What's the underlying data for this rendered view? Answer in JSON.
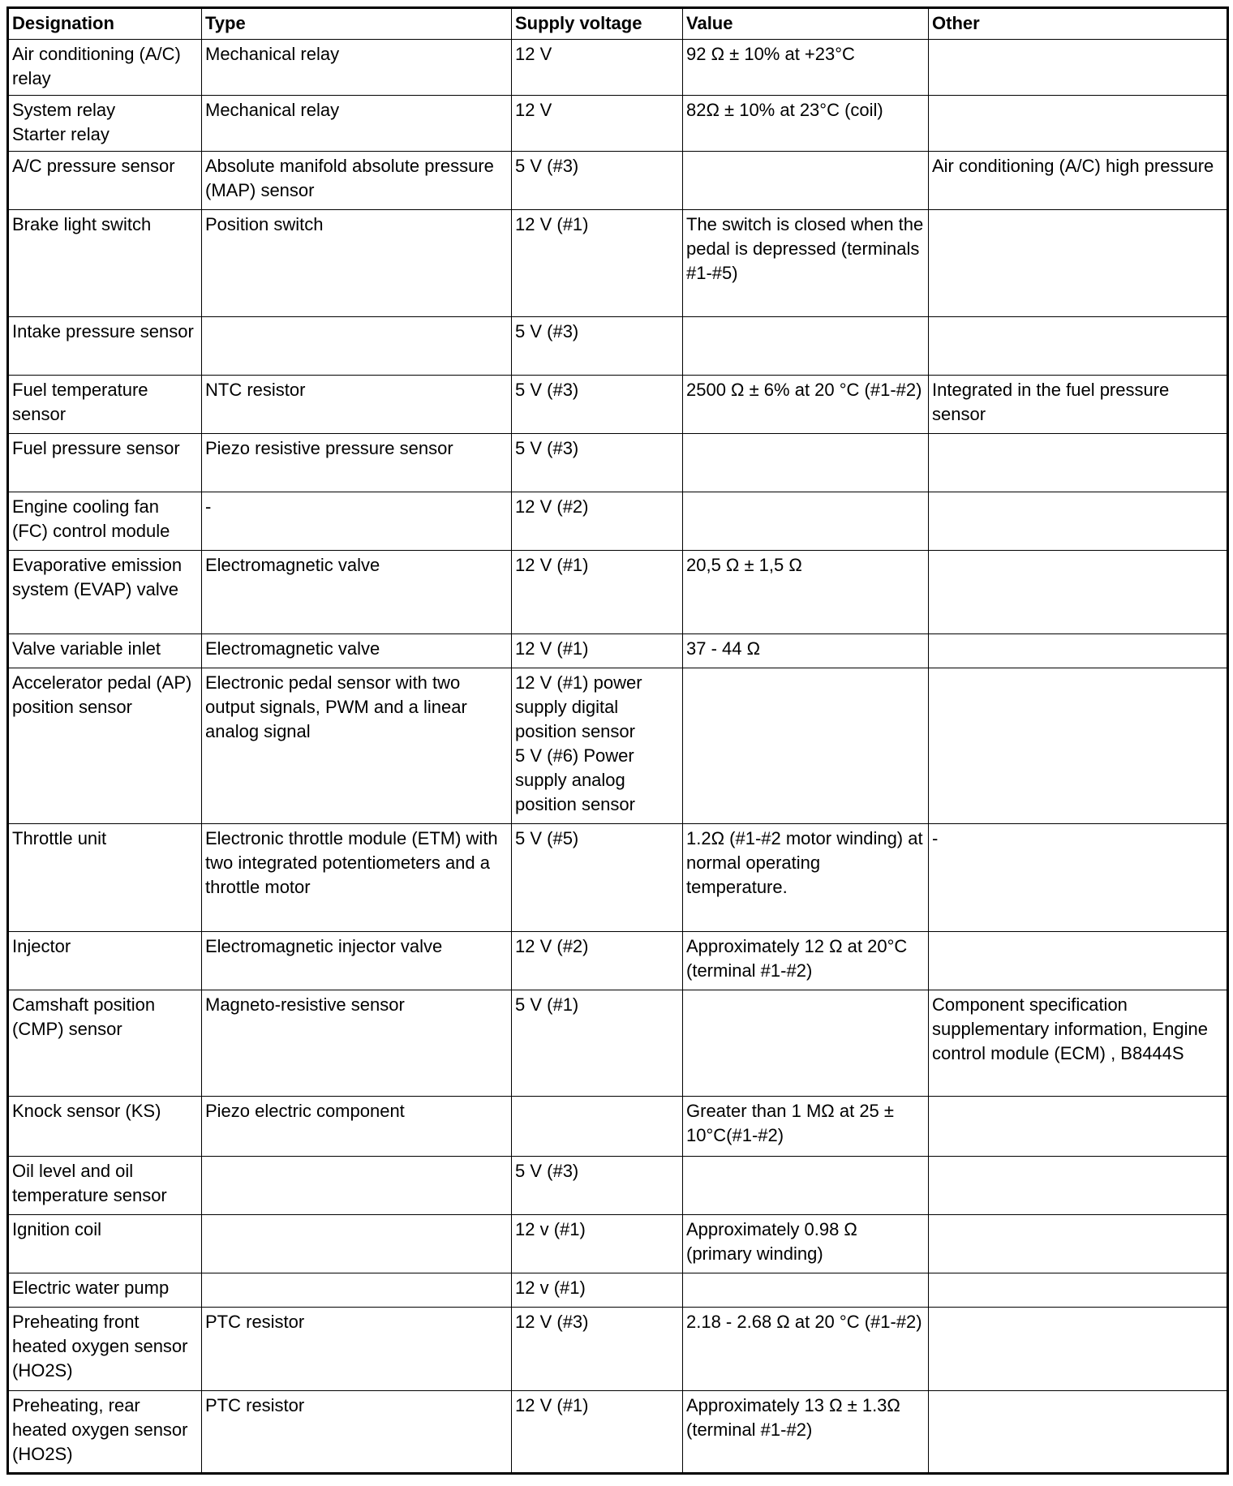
{
  "table": {
    "headers": [
      "Designation",
      "Type",
      "Supply voltage",
      "Value",
      "Other"
    ],
    "rows": [
      [
        "Air conditioning (A/C) relay",
        "Mechanical relay",
        "12 V",
        "92 Ω ± 10% at +23°C",
        ""
      ],
      [
        "System relay\nStarter relay",
        "Mechanical relay",
        "12 V",
        "82Ω ± 10% at 23°C (coil)",
        ""
      ],
      [
        "A/C pressure sensor",
        "Absolute manifold absolute pressure (MAP) sensor",
        "5 V (#3)",
        "",
        "Air conditioning (A/C) high pressure"
      ],
      [
        "Brake light switch",
        "Position switch",
        "12 V (#1)",
        "The switch is closed when the pedal is depressed (terminals #1-#5)",
        ""
      ],
      [
        "Intake pressure sensor",
        "",
        "5 V (#3)",
        "",
        ""
      ],
      [
        "Fuel temperature sensor",
        "NTC resistor",
        "5 V (#3)",
        "2500 Ω ± 6% at 20 °C (#1-#2)",
        "Integrated in the fuel pressure sensor"
      ],
      [
        "Fuel pressure sensor",
        "Piezo resistive pressure sensor",
        "5 V (#3)",
        "",
        ""
      ],
      [
        "Engine cooling fan (FC) control module",
        "-",
        "12 V (#2)",
        "",
        ""
      ],
      [
        "Evaporative emission system (EVAP) valve",
        "Electromagnetic valve",
        "12 V (#1)",
        "20,5 Ω ± 1,5 Ω",
        ""
      ],
      [
        "Valve variable inlet",
        "Electromagnetic valve",
        "12 V (#1)",
        "37 - 44 Ω",
        ""
      ],
      [
        "Accelerator pedal (AP) position sensor",
        "Electronic pedal sensor with two output signals, PWM and a linear analog signal",
        "12 V (#1) power supply digital position sensor\n5 V (#6) Power supply analog position sensor",
        "",
        ""
      ],
      [
        "Throttle unit",
        "Electronic throttle module (ETM) with two integrated potentiometers and a throttle motor",
        "5 V (#5)",
        "1.2Ω (#1-#2 motor winding) at normal operating temperature.",
        "-"
      ],
      [
        "Injector",
        "Electromagnetic injector valve",
        "12 V (#2)",
        "Approximately 12 Ω at 20°C (terminal #1-#2)",
        ""
      ],
      [
        "Camshaft position (CMP) sensor",
        "Magneto-resistive sensor",
        "5 V (#1)",
        "",
        "Component specification supplementary information, Engine control module (ECM) , B8444S"
      ],
      [
        "Knock sensor (KS)",
        "Piezo electric component",
        "",
        "Greater than 1 MΩ at 25 ± 10°C(#1-#2)",
        ""
      ],
      [
        "Oil level and oil temperature sensor",
        "",
        "5 V (#3)",
        "",
        ""
      ],
      [
        "Ignition coil",
        "",
        "12 v (#1)",
        "Approximately 0.98 Ω (primary winding)",
        ""
      ],
      [
        "Electric water pump",
        "",
        "12 v (#1)",
        "",
        ""
      ],
      [
        "Preheating front heated oxygen sensor (HO2S)",
        "PTC resistor",
        "12 V (#3)",
        "2.18 - 2.68 Ω at 20 °C (#1-#2)",
        ""
      ],
      [
        "Preheating, rear heated oxygen sensor (HO2S)",
        "PTC resistor",
        "12 V (#1)",
        "Approximately 13 Ω ± 1.3Ω (terminal #1-#2)",
        ""
      ]
    ]
  }
}
